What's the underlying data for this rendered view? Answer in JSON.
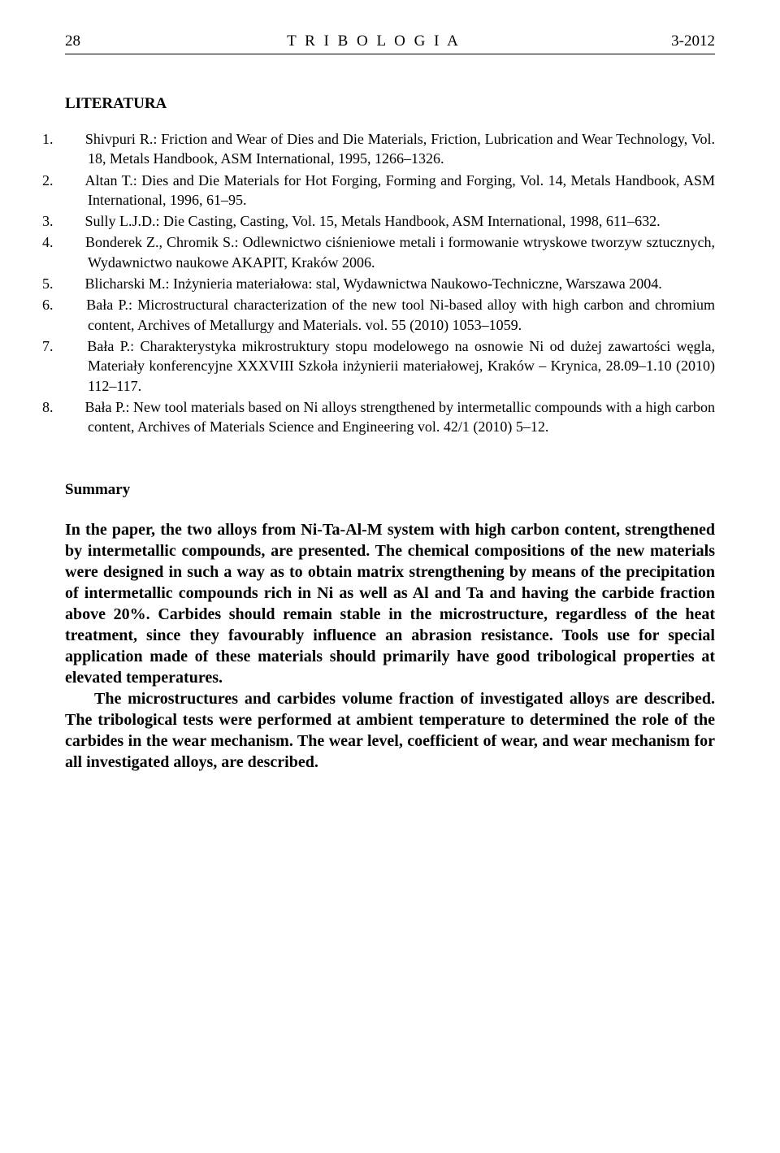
{
  "header": {
    "page_number": "28",
    "journal_title": "T R I B O L O G I A",
    "issue": "3-2012"
  },
  "references": {
    "heading": "LITERATURA",
    "items": [
      {
        "num": "1.",
        "text": "Shivpuri R.: Friction and Wear of Dies and Die Materials, Friction, Lubrication and Wear Technology, Vol. 18, Metals Handbook, ASM International, 1995, 1266–1326."
      },
      {
        "num": "2.",
        "text": "Altan T.: Dies and Die Materials for Hot Forging, Forming and Forging, Vol. 14, Metals Handbook, ASM International, 1996, 61–95."
      },
      {
        "num": "3.",
        "text": "Sully L.J.D.: Die Casting, Casting, Vol. 15, Metals Handbook, ASM International, 1998, 611–632."
      },
      {
        "num": "4.",
        "text": "Bonderek Z., Chromik S.: Odlewnictwo ciśnieniowe metali i formowanie wtryskowe tworzyw sztucznych, Wydawnictwo naukowe AKAPIT, Kraków 2006."
      },
      {
        "num": "5.",
        "text": "Blicharski M.: Inżynieria materiałowa: stal, Wydawnictwa Naukowo-Techniczne, Warszawa 2004."
      },
      {
        "num": "6.",
        "text": "Bała P.: Microstructural characterization of the new tool Ni-based alloy with high carbon and chromium content, Archives of Metallurgy and Materials. vol. 55 (2010) 1053–1059."
      },
      {
        "num": "7.",
        "text": "Bała P.: Charakterystyka mikrostruktury stopu modelowego na osnowie Ni od dużej zawartości węgla, Materiały konferencyjne XXXVIII Szkoła inżynierii materiałowej, Kraków – Krynica, 28.09–1.10 (2010) 112–117."
      },
      {
        "num": "8.",
        "text": "Bała P.: New tool materials based on Ni alloys strengthened by intermetallic compounds with a high carbon content, Archives of Materials Science and Engineering vol. 42/1 (2010) 5–12."
      }
    ]
  },
  "summary": {
    "heading": "Summary",
    "paragraphs": [
      "In the paper, the two alloys from Ni-Ta-Al-M system with high carbon content, strengthened by intermetallic compounds, are presented. The chemical compositions of the new materials were designed in such a way as to obtain matrix strengthening by means of the precipitation of intermetallic compounds rich in Ni as well as Al and Ta and having the carbide fraction above 20%. Carbides should remain stable in the microstructure, regardless of the heat treatment, since they favourably influence an abrasion resistance. Tools use for special application made of these materials should primarily have good tribological properties at elevated temperatures.",
      "The microstructures and carbides volume fraction of investigated alloys are described. The tribological tests were performed at ambient temperature to determined the role of the carbides in the wear mechanism. The wear level, coefficient of wear, and wear mechanism for all investigated alloys, are described."
    ]
  }
}
